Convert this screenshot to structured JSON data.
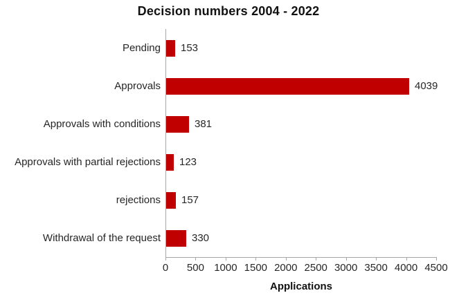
{
  "chart_data": {
    "type": "bar",
    "orientation": "horizontal",
    "title": "Decision numbers 2004 - 2022",
    "categories": [
      "Pending",
      "Approvals",
      "Approvals with conditions",
      "Approvals with partial rejections",
      "rejections",
      "Withdrawal of the request"
    ],
    "values": [
      153,
      4039,
      381,
      123,
      157,
      330
    ],
    "data_labels": [
      "153",
      "4039",
      "381",
      "123",
      "157",
      "330"
    ],
    "xlabel": "Applications",
    "xlim": [
      0,
      4500
    ],
    "xticks": [
      0,
      500,
      1000,
      1500,
      2000,
      2500,
      3000,
      3500,
      4000,
      4500
    ],
    "xtick_labels": [
      "0",
      "500",
      "1000",
      "1500",
      "2000",
      "2500",
      "3000",
      "3500",
      "4000",
      "4500"
    ],
    "grid": false,
    "legend": false,
    "bar_color": "#c00000",
    "axis_color": "#a6a6a6",
    "text_color": "#262626",
    "title_color": "#111111",
    "background_color": "#ffffff"
  }
}
